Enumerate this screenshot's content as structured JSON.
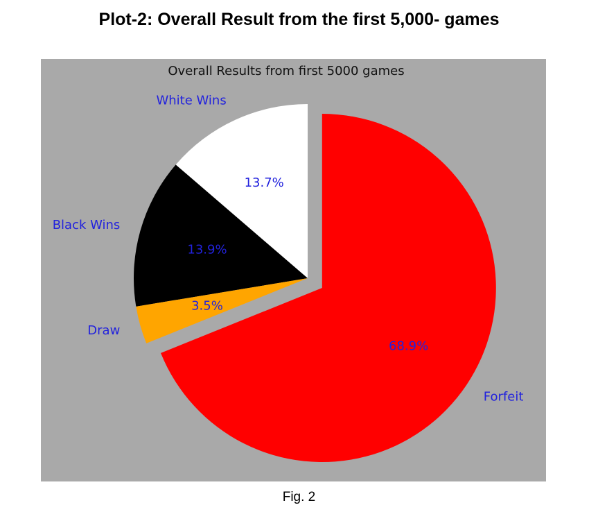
{
  "document": {
    "heading": "Plot-2: Overall Result from the first 5,000- games",
    "caption": "Fig. 2"
  },
  "chart_data": {
    "type": "pie",
    "title": "Overall Results from first 5000 games",
    "background_color": "#a9a9a9",
    "label_color": "#2222dd",
    "start_angle_deg": 90,
    "counterclockwise": true,
    "slices": [
      {
        "label": "White Wins",
        "value": 13.7,
        "pct_label": "13.7%",
        "color": "#ffffff",
        "exploded": false
      },
      {
        "label": "Black Wins",
        "value": 13.9,
        "pct_label": "13.9%",
        "color": "#000000",
        "exploded": false
      },
      {
        "label": "Draw",
        "value": 3.5,
        "pct_label": "3.5%",
        "color": "#ffa500",
        "exploded": false
      },
      {
        "label": "Forfeit",
        "value": 68.9,
        "pct_label": "68.9%",
        "color": "#ff0000",
        "exploded": true
      }
    ]
  }
}
